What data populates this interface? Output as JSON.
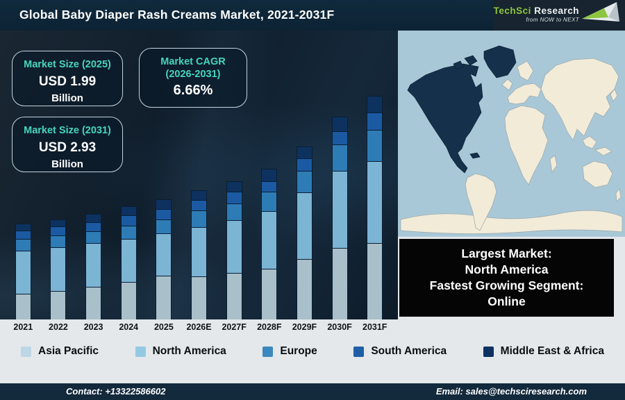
{
  "header": {
    "title": "Global Baby Diaper Rash Creams Market, 2021-2031F",
    "logo": {
      "brand_primary": "TechSci",
      "brand_secondary": "Research",
      "tagline": "from NOW to NEXT",
      "brand_green": "#8cc63e"
    }
  },
  "stat_boxes": [
    {
      "label": "Market Size (2025)",
      "value": "USD 1.99",
      "unit": "Billion"
    },
    {
      "label": "Market CAGR",
      "label2": "(2026-2031)",
      "value": "6.66%"
    },
    {
      "label": "Market Size (2031)",
      "value": "USD 2.93",
      "unit": "Billion"
    }
  ],
  "chart_data": {
    "type": "bar",
    "stacked": true,
    "title": "Global Baby Diaper Rash Creams Market, 2021-2031F",
    "categories": [
      "2021",
      "2022",
      "2023",
      "2024",
      "2025",
      "2026E",
      "2027F",
      "2028F",
      "2029F",
      "2030F",
      "2031F"
    ],
    "unit": "relative height (infographic has no numeric value axis)",
    "series": [
      {
        "name": "Asia Pacific",
        "color": "#a9bfc9",
        "values": [
          37,
          41,
          47,
          54,
          63,
          62,
          67,
          73,
          87,
          103,
          110
        ]
      },
      {
        "name": "North America",
        "color": "#7cb4d4",
        "values": [
          62,
          63,
          63,
          62,
          61,
          71,
          76,
          83,
          96,
          111,
          118
        ]
      },
      {
        "name": "Europe",
        "color": "#2e7cb5",
        "values": [
          17,
          17,
          17,
          19,
          20,
          24,
          24,
          28,
          31,
          38,
          45
        ]
      },
      {
        "name": "South America",
        "color": "#1b5aa3",
        "values": [
          12,
          13,
          13,
          15,
          15,
          15,
          17,
          15,
          18,
          19,
          25
        ]
      },
      {
        "name": "Middle East & Africa",
        "color": "#0d3260",
        "values": [
          10,
          10,
          12,
          13,
          14,
          14,
          15,
          18,
          17,
          21,
          24
        ]
      }
    ],
    "annotations": {
      "market_size_2025_usd_billion": 1.99,
      "market_size_2031_usd_billion": 2.93,
      "cagr_2026_2031_percent": 6.66
    },
    "legend_position": "bottom",
    "grid": false
  },
  "map": {
    "highlight_region": "North America",
    "ocean_color": "#a9c8d7",
    "land_color": "#f1ebd8",
    "highlight_color": "#15304a"
  },
  "info_box": {
    "lines": [
      "Largest Market:",
      "North America",
      "Fastest Growing Segment:",
      "Online"
    ]
  },
  "legend": {
    "items": [
      {
        "label": "Asia Pacific",
        "color": "#bdd7e7"
      },
      {
        "label": "North America",
        "color": "#93c9e3"
      },
      {
        "label": "Europe",
        "color": "#3c87c0"
      },
      {
        "label": "South America",
        "color": "#1f5fa8"
      },
      {
        "label": "Middle East & Africa",
        "color": "#0e3160"
      }
    ]
  },
  "footer": {
    "contact": "Contact: +13322586602",
    "email": "Email: sales@techsciresearch.com"
  }
}
